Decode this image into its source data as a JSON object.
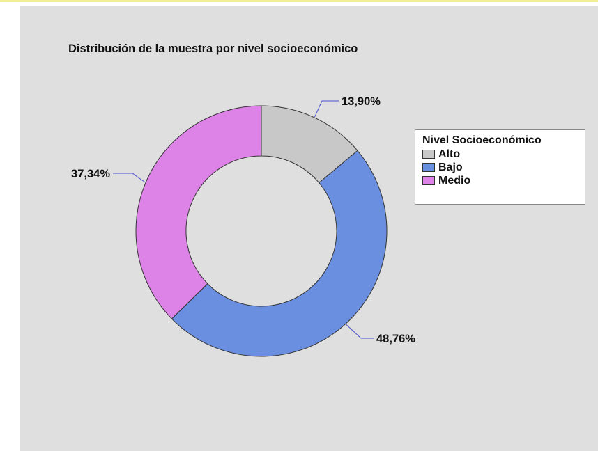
{
  "chart_data": {
    "type": "pie",
    "title": "Distribución de la muestra por nivel socioeconómico",
    "legend_title": "Nivel Socioeconómico",
    "legend_position": "right",
    "start_angle_deg": 0,
    "direction": "clockwise",
    "donut": true,
    "slices": [
      {
        "name": "Alto",
        "value": 13.9,
        "label": "13,90%",
        "color": "#c8c8c8"
      },
      {
        "name": "Bajo",
        "value": 48.76,
        "label": "48,76%",
        "color": "#6b8fe0"
      },
      {
        "name": "Medio",
        "value": 37.34,
        "label": "37,34%",
        "color": "#dd82e6"
      }
    ]
  }
}
